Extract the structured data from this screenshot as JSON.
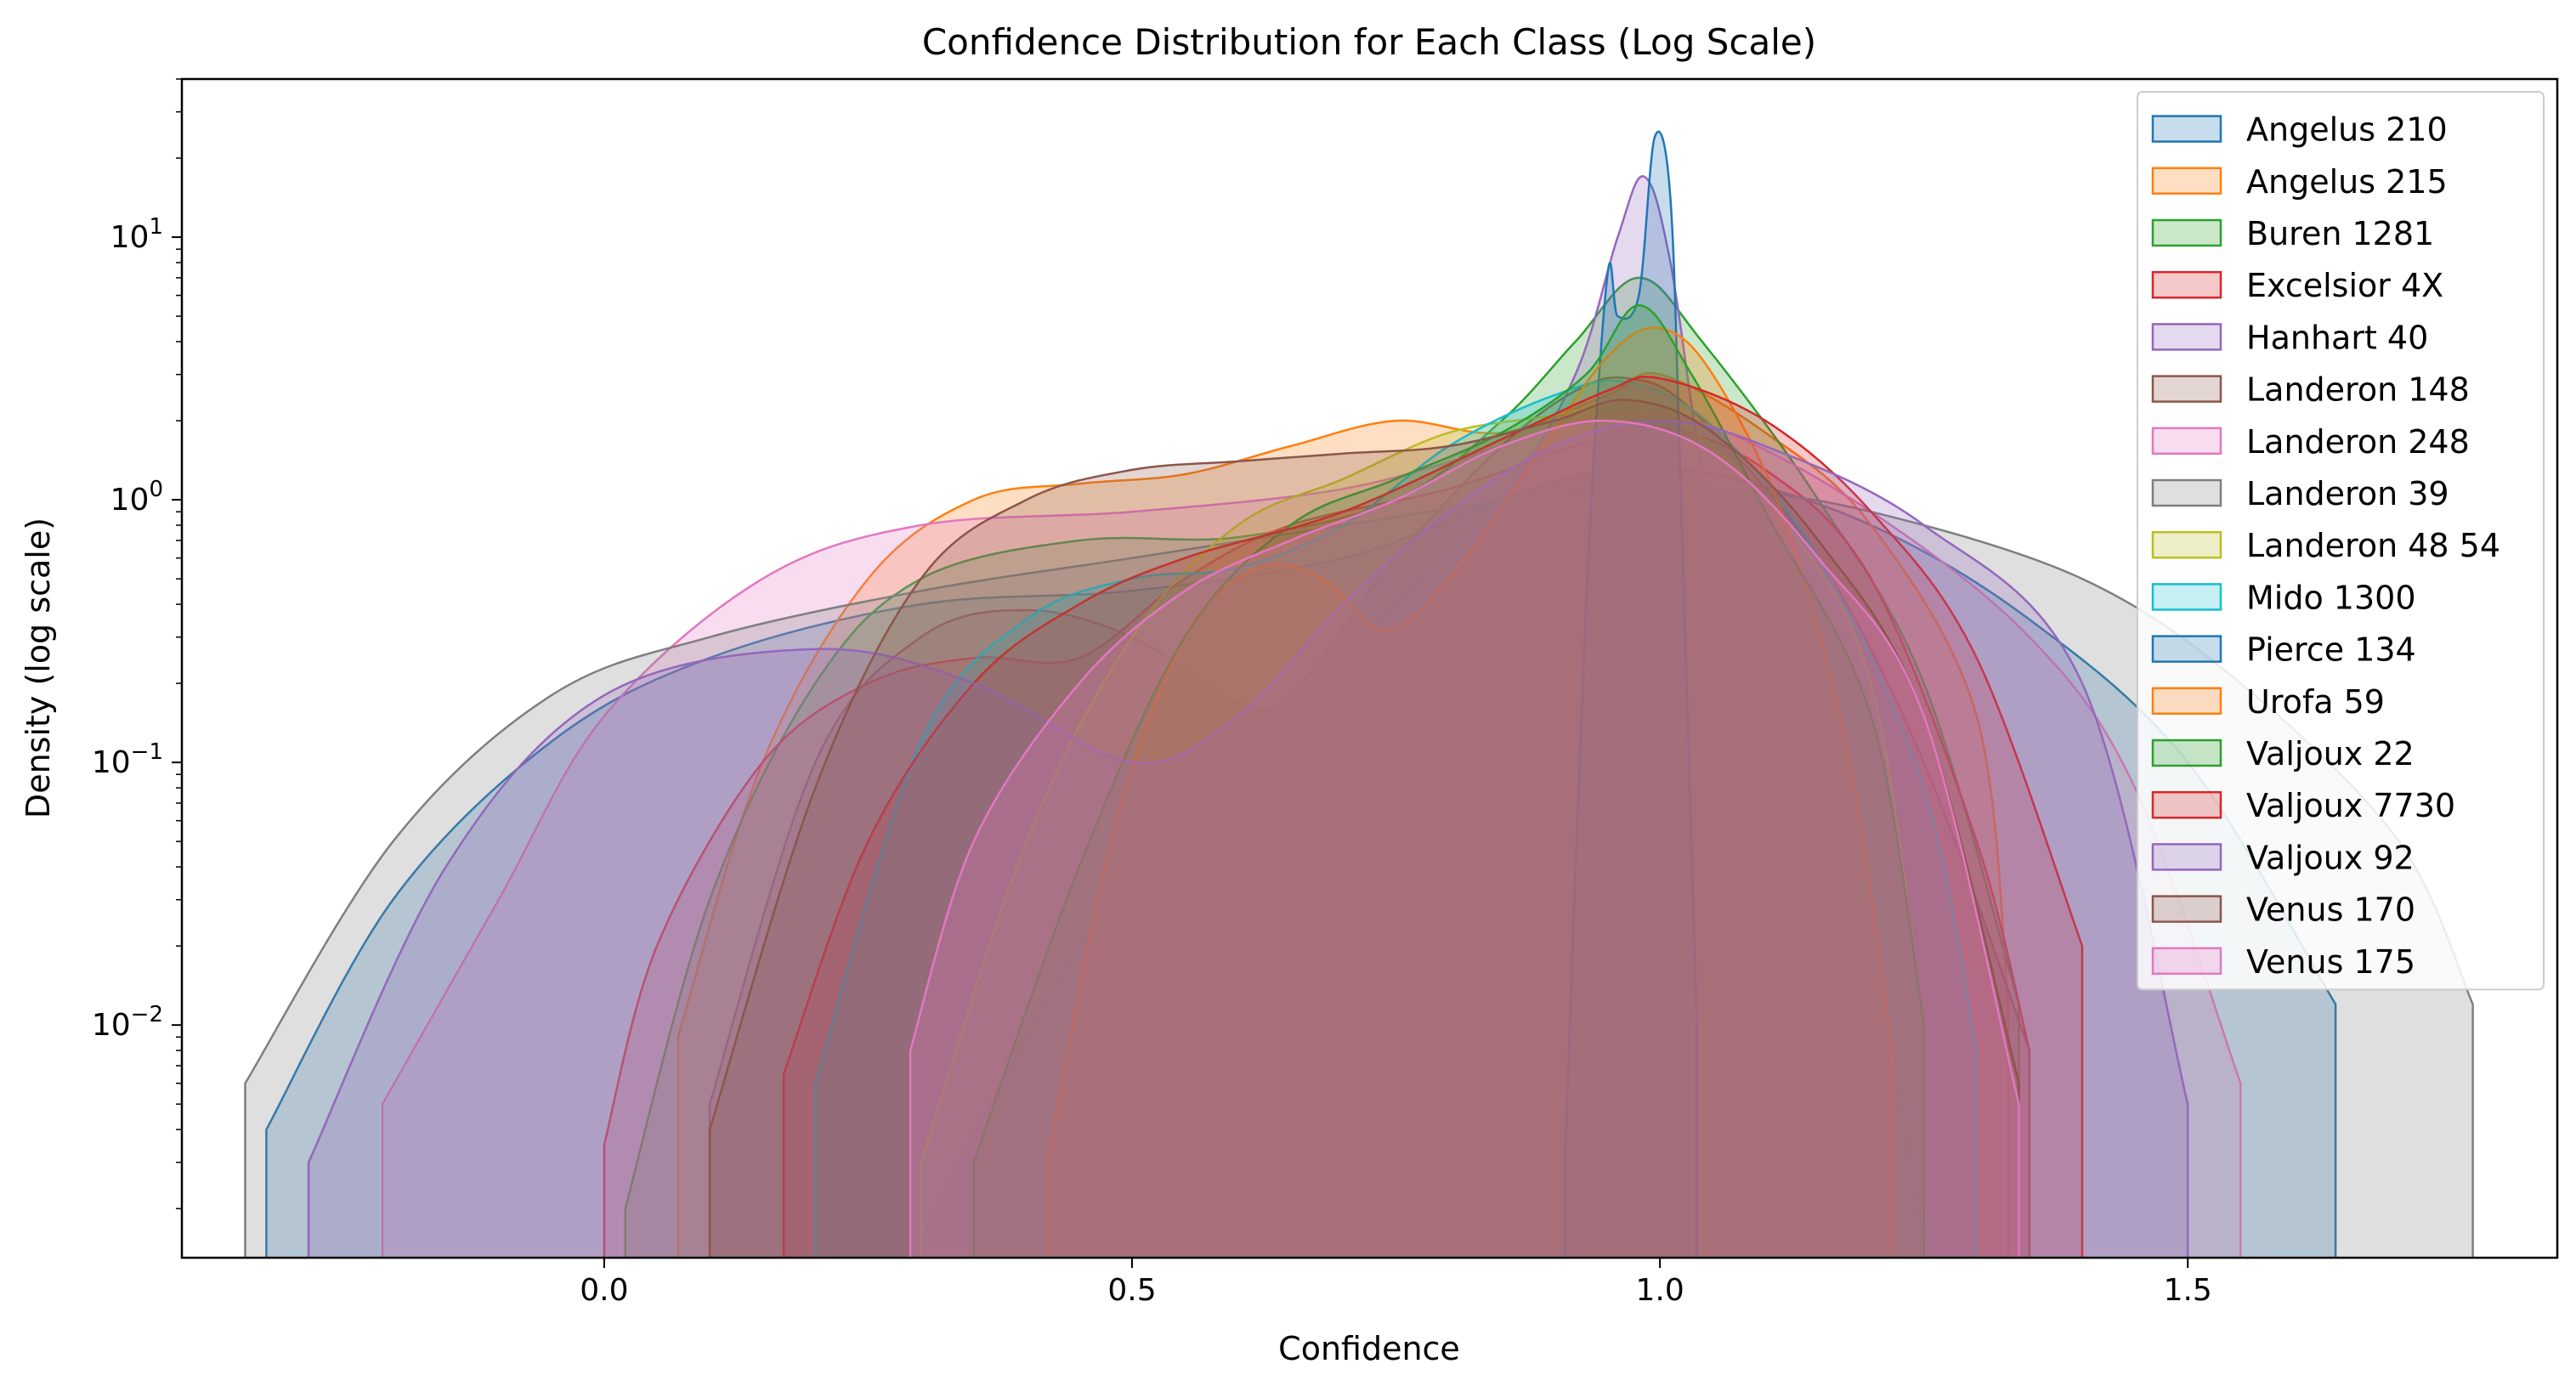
{
  "chart_data": {
    "type": "area",
    "title": "Confidence Distribution for Each Class (Log Scale)",
    "xlabel": "Confidence",
    "ylabel": "Density (log scale)",
    "xlim": [
      -0.4,
      1.85
    ],
    "ylim": [
      0.0013,
      40
    ],
    "yscale": "log",
    "x_ticks": [
      {
        "value": 0.0,
        "label": "0.0"
      },
      {
        "value": 0.5,
        "label": "0.5"
      },
      {
        "value": 1.0,
        "label": "1.0"
      },
      {
        "value": 1.5,
        "label": "1.5"
      }
    ],
    "y_ticks": [
      {
        "value": 0.01,
        "base": "10",
        "exp": "−2"
      },
      {
        "value": 0.1,
        "base": "10",
        "exp": "−1"
      },
      {
        "value": 1,
        "base": "10",
        "exp": "0"
      },
      {
        "value": 10,
        "base": "10",
        "exp": "1"
      }
    ],
    "legend_position": "top-right",
    "grid": false,
    "series": [
      {
        "name": "Angelus 210",
        "color": "#1f77b4",
        "points": [
          [
            -0.32,
            0.004
          ],
          [
            -0.2,
            0.03
          ],
          [
            -0.05,
            0.12
          ],
          [
            0.1,
            0.25
          ],
          [
            0.3,
            0.4
          ],
          [
            0.5,
            0.45
          ],
          [
            0.7,
            0.6
          ],
          [
            0.85,
            1.0
          ],
          [
            0.95,
            1.3
          ],
          [
            1.05,
            1.25
          ],
          [
            1.2,
            0.8
          ],
          [
            1.35,
            0.35
          ],
          [
            1.5,
            0.1
          ],
          [
            1.64,
            0.012
          ]
        ]
      },
      {
        "name": "Angelus 215",
        "color": "#ff7f0e",
        "points": [
          [
            0.07,
            0.009
          ],
          [
            0.15,
            0.1
          ],
          [
            0.25,
            0.5
          ],
          [
            0.35,
            1.0
          ],
          [
            0.45,
            1.15
          ],
          [
            0.55,
            1.25
          ],
          [
            0.65,
            1.6
          ],
          [
            0.75,
            2.0
          ],
          [
            0.85,
            1.8
          ],
          [
            0.95,
            2.5
          ],
          [
            1.0,
            3.0
          ],
          [
            1.1,
            1.8
          ],
          [
            1.2,
            0.8
          ],
          [
            1.3,
            0.15
          ],
          [
            1.33,
            0.012
          ]
        ]
      },
      {
        "name": "Buren 1281",
        "color": "#2ca02c",
        "points": [
          [
            0.02,
            0.002
          ],
          [
            0.1,
            0.03
          ],
          [
            0.2,
            0.2
          ],
          [
            0.3,
            0.5
          ],
          [
            0.45,
            0.7
          ],
          [
            0.6,
            0.72
          ],
          [
            0.75,
            1.0
          ],
          [
            0.85,
            2.0
          ],
          [
            0.92,
            4.0
          ],
          [
            0.98,
            7.0
          ],
          [
            1.04,
            4.0
          ],
          [
            1.15,
            1.0
          ],
          [
            1.25,
            0.2
          ],
          [
            1.34,
            0.012
          ]
        ]
      },
      {
        "name": "Excelsior 4X",
        "color": "#d62728",
        "points": [
          [
            0.0,
            0.0035
          ],
          [
            0.05,
            0.02
          ],
          [
            0.15,
            0.1
          ],
          [
            0.25,
            0.2
          ],
          [
            0.35,
            0.25
          ],
          [
            0.45,
            0.25
          ],
          [
            0.55,
            0.5
          ],
          [
            0.65,
            0.8
          ],
          [
            0.8,
            1.1
          ],
          [
            0.92,
            1.6
          ],
          [
            1.0,
            1.9
          ],
          [
            1.1,
            1.3
          ],
          [
            1.2,
            0.5
          ],
          [
            1.3,
            0.05
          ],
          [
            1.35,
            0.008
          ]
        ]
      },
      {
        "name": "Hanhart 40",
        "color": "#9467bd",
        "points": [
          [
            0.3,
            0.0015
          ],
          [
            0.45,
            0.02
          ],
          [
            0.6,
            0.1
          ],
          [
            0.75,
            0.4
          ],
          [
            0.85,
            1.0
          ],
          [
            0.92,
            3.0
          ],
          [
            0.96,
            10.0
          ],
          [
            0.985,
            17.0
          ],
          [
            1.01,
            8.0
          ],
          [
            1.05,
            0.8
          ],
          [
            1.12,
            0.1
          ],
          [
            1.2,
            0.02
          ],
          [
            1.25,
            0.0015
          ]
        ]
      },
      {
        "name": "Landeron 148",
        "color": "#8c564b",
        "points": [
          [
            0.1,
            0.005
          ],
          [
            0.2,
            0.1
          ],
          [
            0.3,
            0.3
          ],
          [
            0.4,
            0.38
          ],
          [
            0.5,
            0.3
          ],
          [
            0.6,
            0.17
          ],
          [
            0.65,
            0.18
          ],
          [
            0.75,
            0.6
          ],
          [
            0.85,
            1.6
          ],
          [
            0.92,
            2.6
          ],
          [
            0.97,
            2.9
          ],
          [
            1.03,
            2.2
          ],
          [
            1.15,
            0.6
          ],
          [
            1.25,
            0.1
          ],
          [
            1.35,
            0.008
          ]
        ]
      },
      {
        "name": "Landeron 248",
        "color": "#e377c2",
        "points": [
          [
            -0.21,
            0.005
          ],
          [
            -0.1,
            0.03
          ],
          [
            0.0,
            0.15
          ],
          [
            0.15,
            0.5
          ],
          [
            0.3,
            0.8
          ],
          [
            0.5,
            0.9
          ],
          [
            0.7,
            1.1
          ],
          [
            0.85,
            1.6
          ],
          [
            0.95,
            2.1
          ],
          [
            1.05,
            1.9
          ],
          [
            1.2,
            0.9
          ],
          [
            1.35,
            0.3
          ],
          [
            1.45,
            0.08
          ],
          [
            1.55,
            0.006
          ]
        ]
      },
      {
        "name": "Landeron 39",
        "color": "#7f7f7f",
        "points": [
          [
            -0.34,
            0.006
          ],
          [
            -0.2,
            0.05
          ],
          [
            -0.05,
            0.18
          ],
          [
            0.1,
            0.3
          ],
          [
            0.3,
            0.45
          ],
          [
            0.5,
            0.6
          ],
          [
            0.7,
            0.8
          ],
          [
            0.9,
            1.05
          ],
          [
            1.05,
            1.1
          ],
          [
            1.2,
            0.9
          ],
          [
            1.4,
            0.5
          ],
          [
            1.55,
            0.2
          ],
          [
            1.7,
            0.05
          ],
          [
            1.77,
            0.012
          ]
        ]
      },
      {
        "name": "Landeron 48 54",
        "color": "#bcbd22",
        "points": [
          [
            0.3,
            0.003
          ],
          [
            0.4,
            0.05
          ],
          [
            0.5,
            0.3
          ],
          [
            0.6,
            0.8
          ],
          [
            0.7,
            1.2
          ],
          [
            0.8,
            1.8
          ],
          [
            0.9,
            2.1
          ],
          [
            0.97,
            2.4
          ],
          [
            1.02,
            2.0
          ],
          [
            1.12,
            0.8
          ],
          [
            1.2,
            0.2
          ],
          [
            1.25,
            0.01
          ]
        ]
      },
      {
        "name": "Mido 1300",
        "color": "#17becf",
        "points": [
          [
            0.2,
            0.006
          ],
          [
            0.3,
            0.12
          ],
          [
            0.4,
            0.35
          ],
          [
            0.5,
            0.5
          ],
          [
            0.6,
            0.55
          ],
          [
            0.7,
            0.8
          ],
          [
            0.8,
            1.6
          ],
          [
            0.9,
            2.5
          ],
          [
            0.97,
            2.8
          ],
          [
            1.05,
            1.9
          ],
          [
            1.15,
            0.6
          ],
          [
            1.25,
            0.08
          ],
          [
            1.3,
            0.008
          ]
        ]
      },
      {
        "name": "Pierce 134",
        "color": "#1f77b4",
        "points": [
          [
            0.91,
            0.003
          ],
          [
            0.93,
            0.4
          ],
          [
            0.95,
            7.0
          ],
          [
            0.96,
            5.0
          ],
          [
            0.98,
            6.0
          ],
          [
            0.995,
            24.0
          ],
          [
            1.01,
            14.0
          ],
          [
            1.02,
            1.0
          ],
          [
            1.035,
            0.01
          ]
        ]
      },
      {
        "name": "Urofa 59",
        "color": "#ff7f0e",
        "points": [
          [
            0.42,
            0.003
          ],
          [
            0.48,
            0.05
          ],
          [
            0.55,
            0.3
          ],
          [
            0.62,
            0.55
          ],
          [
            0.68,
            0.5
          ],
          [
            0.74,
            0.32
          ],
          [
            0.8,
            0.5
          ],
          [
            0.88,
            1.4
          ],
          [
            0.95,
            3.5
          ],
          [
            1.0,
            4.5
          ],
          [
            1.05,
            3.0
          ],
          [
            1.12,
            0.8
          ],
          [
            1.18,
            0.1
          ],
          [
            1.22,
            0.008
          ]
        ]
      },
      {
        "name": "Valjoux 22",
        "color": "#2ca02c",
        "points": [
          [
            0.35,
            0.003
          ],
          [
            0.45,
            0.04
          ],
          [
            0.55,
            0.3
          ],
          [
            0.65,
            0.8
          ],
          [
            0.75,
            1.2
          ],
          [
            0.85,
            1.8
          ],
          [
            0.93,
            3.0
          ],
          [
            0.98,
            5.5
          ],
          [
            1.03,
            3.0
          ],
          [
            1.1,
            0.9
          ],
          [
            1.2,
            0.15
          ],
          [
            1.25,
            0.01
          ]
        ]
      },
      {
        "name": "Valjoux 7730",
        "color": "#d62728",
        "points": [
          [
            0.17,
            0.0065
          ],
          [
            0.25,
            0.05
          ],
          [
            0.35,
            0.2
          ],
          [
            0.45,
            0.4
          ],
          [
            0.55,
            0.6
          ],
          [
            0.7,
            0.9
          ],
          [
            0.85,
            1.7
          ],
          [
            0.95,
            2.6
          ],
          [
            1.0,
            2.9
          ],
          [
            1.1,
            2.0
          ],
          [
            1.2,
            0.9
          ],
          [
            1.3,
            0.25
          ],
          [
            1.4,
            0.02
          ]
        ]
      },
      {
        "name": "Valjoux 92",
        "color": "#9467bd",
        "points": [
          [
            -0.28,
            0.003
          ],
          [
            -0.15,
            0.04
          ],
          [
            0.0,
            0.18
          ],
          [
            0.2,
            0.27
          ],
          [
            0.35,
            0.2
          ],
          [
            0.5,
            0.1
          ],
          [
            0.6,
            0.15
          ],
          [
            0.7,
            0.4
          ],
          [
            0.8,
            0.9
          ],
          [
            0.9,
            1.6
          ],
          [
            1.0,
            2.0
          ],
          [
            1.1,
            1.6
          ],
          [
            1.25,
            0.8
          ],
          [
            1.4,
            0.2
          ],
          [
            1.5,
            0.005
          ]
        ]
      },
      {
        "name": "Venus 170",
        "color": "#8c564b",
        "points": [
          [
            0.1,
            0.004
          ],
          [
            0.2,
            0.08
          ],
          [
            0.3,
            0.5
          ],
          [
            0.4,
            1.0
          ],
          [
            0.5,
            1.3
          ],
          [
            0.6,
            1.4
          ],
          [
            0.7,
            1.5
          ],
          [
            0.8,
            1.6
          ],
          [
            0.9,
            2.0
          ],
          [
            0.97,
            2.4
          ],
          [
            1.05,
            1.8
          ],
          [
            1.15,
            0.7
          ],
          [
            1.25,
            0.15
          ],
          [
            1.34,
            0.006
          ]
        ]
      },
      {
        "name": "Venus 175",
        "color": "#e377c2",
        "points": [
          [
            0.29,
            0.008
          ],
          [
            0.35,
            0.05
          ],
          [
            0.45,
            0.2
          ],
          [
            0.55,
            0.45
          ],
          [
            0.65,
            0.7
          ],
          [
            0.75,
            1.0
          ],
          [
            0.85,
            1.6
          ],
          [
            0.95,
            2.0
          ],
          [
            1.05,
            1.5
          ],
          [
            1.15,
            0.6
          ],
          [
            1.25,
            0.15
          ],
          [
            1.34,
            0.005
          ]
        ]
      }
    ]
  }
}
